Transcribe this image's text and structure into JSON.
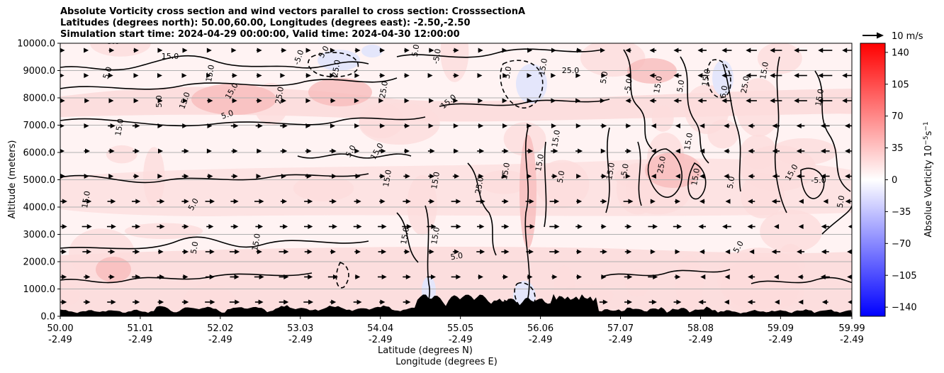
{
  "chart_data": {
    "type": "heatmap",
    "title_lines": [
      "Absolute Vorticity cross section and wind vectors parallel to cross section: CrosssectionA",
      "Latitudes (degrees north): 50.00,60.00, Longitudes (degrees east): -2.50,-2.50",
      "Simulation start time: 2024-04-29 00:00:00, Valid time: 2024-04-30 12:00:00"
    ],
    "ylabel": "Altitude (meters)",
    "xlabel_lines": [
      "Latitude (degrees N)",
      "Longitude (degrees E)"
    ],
    "y_ticks": [
      "0.0",
      "1000.0",
      "2000.0",
      "3000.0",
      "4000.0",
      "5000.0",
      "6000.0",
      "7000.0",
      "8000.0",
      "9000.0",
      "10000.0"
    ],
    "ylim": [
      0,
      10000
    ],
    "x_ticks": [
      {
        "lat": "50.00",
        "lon": "-2.49"
      },
      {
        "lat": "51.01",
        "lon": "-2.49"
      },
      {
        "lat": "52.02",
        "lon": "-2.49"
      },
      {
        "lat": "53.03",
        "lon": "-2.49"
      },
      {
        "lat": "54.04",
        "lon": "-2.49"
      },
      {
        "lat": "55.05",
        "lon": "-2.49"
      },
      {
        "lat": "56.06",
        "lon": "-2.49"
      },
      {
        "lat": "57.07",
        "lon": "-2.49"
      },
      {
        "lat": "58.08",
        "lon": "-2.49"
      },
      {
        "lat": "59.09",
        "lon": "-2.49"
      },
      {
        "lat": "59.99",
        "lon": "-2.49"
      }
    ],
    "xlim": [
      50.0,
      59.99
    ],
    "grid": "horizontal",
    "colorbar": {
      "label": "Absolue Vorticity 10",
      "label_exp": "−5",
      "label_unit": "s",
      "label_unit_exp": "−1",
      "ticks": [
        "140",
        "105",
        "70",
        "35",
        "0",
        "−35",
        "−70",
        "−105",
        "−140"
      ],
      "range": [
        -150,
        150
      ],
      "colormap": "bwr"
    },
    "quiver_key": "10 m/s",
    "contour_levels": [
      -5.0,
      5.0,
      15.0,
      25.0
    ],
    "contour_labels": [
      "5.0",
      "15.0",
      "-5.0",
      "5.0",
      "15.0",
      "25.0",
      "15.0",
      "5.0",
      "15.0",
      "25.0",
      "25.0",
      "5.0",
      "5.0",
      "-5.0",
      "5.0",
      "15.0",
      "25.0",
      "5.0",
      "15.0",
      "-5.0",
      "5.0",
      "15.0",
      "25.0",
      "15.0",
      "5.0",
      "15.0",
      "15.0",
      "5.0",
      "15.0",
      "15.0",
      "15.0",
      "15.0",
      "25.0",
      "5.0",
      "15.0",
      "15.0",
      "15.0",
      "25.0",
      "15.0",
      "15.0",
      "-5.0",
      "5.0",
      "15.0",
      "5.0",
      "15.0",
      "-5.0",
      "5.0",
      "15.0",
      "5.0",
      "15.0",
      "15.0",
      "5.0",
      "15.0",
      "5.0",
      "5.0"
    ],
    "colors": {
      "positive_fill": "#fcdcdc",
      "strong_positive_fill": "#f8bcbc",
      "negative_fill": "#e4e6fb",
      "terrain": "#000000"
    }
  }
}
